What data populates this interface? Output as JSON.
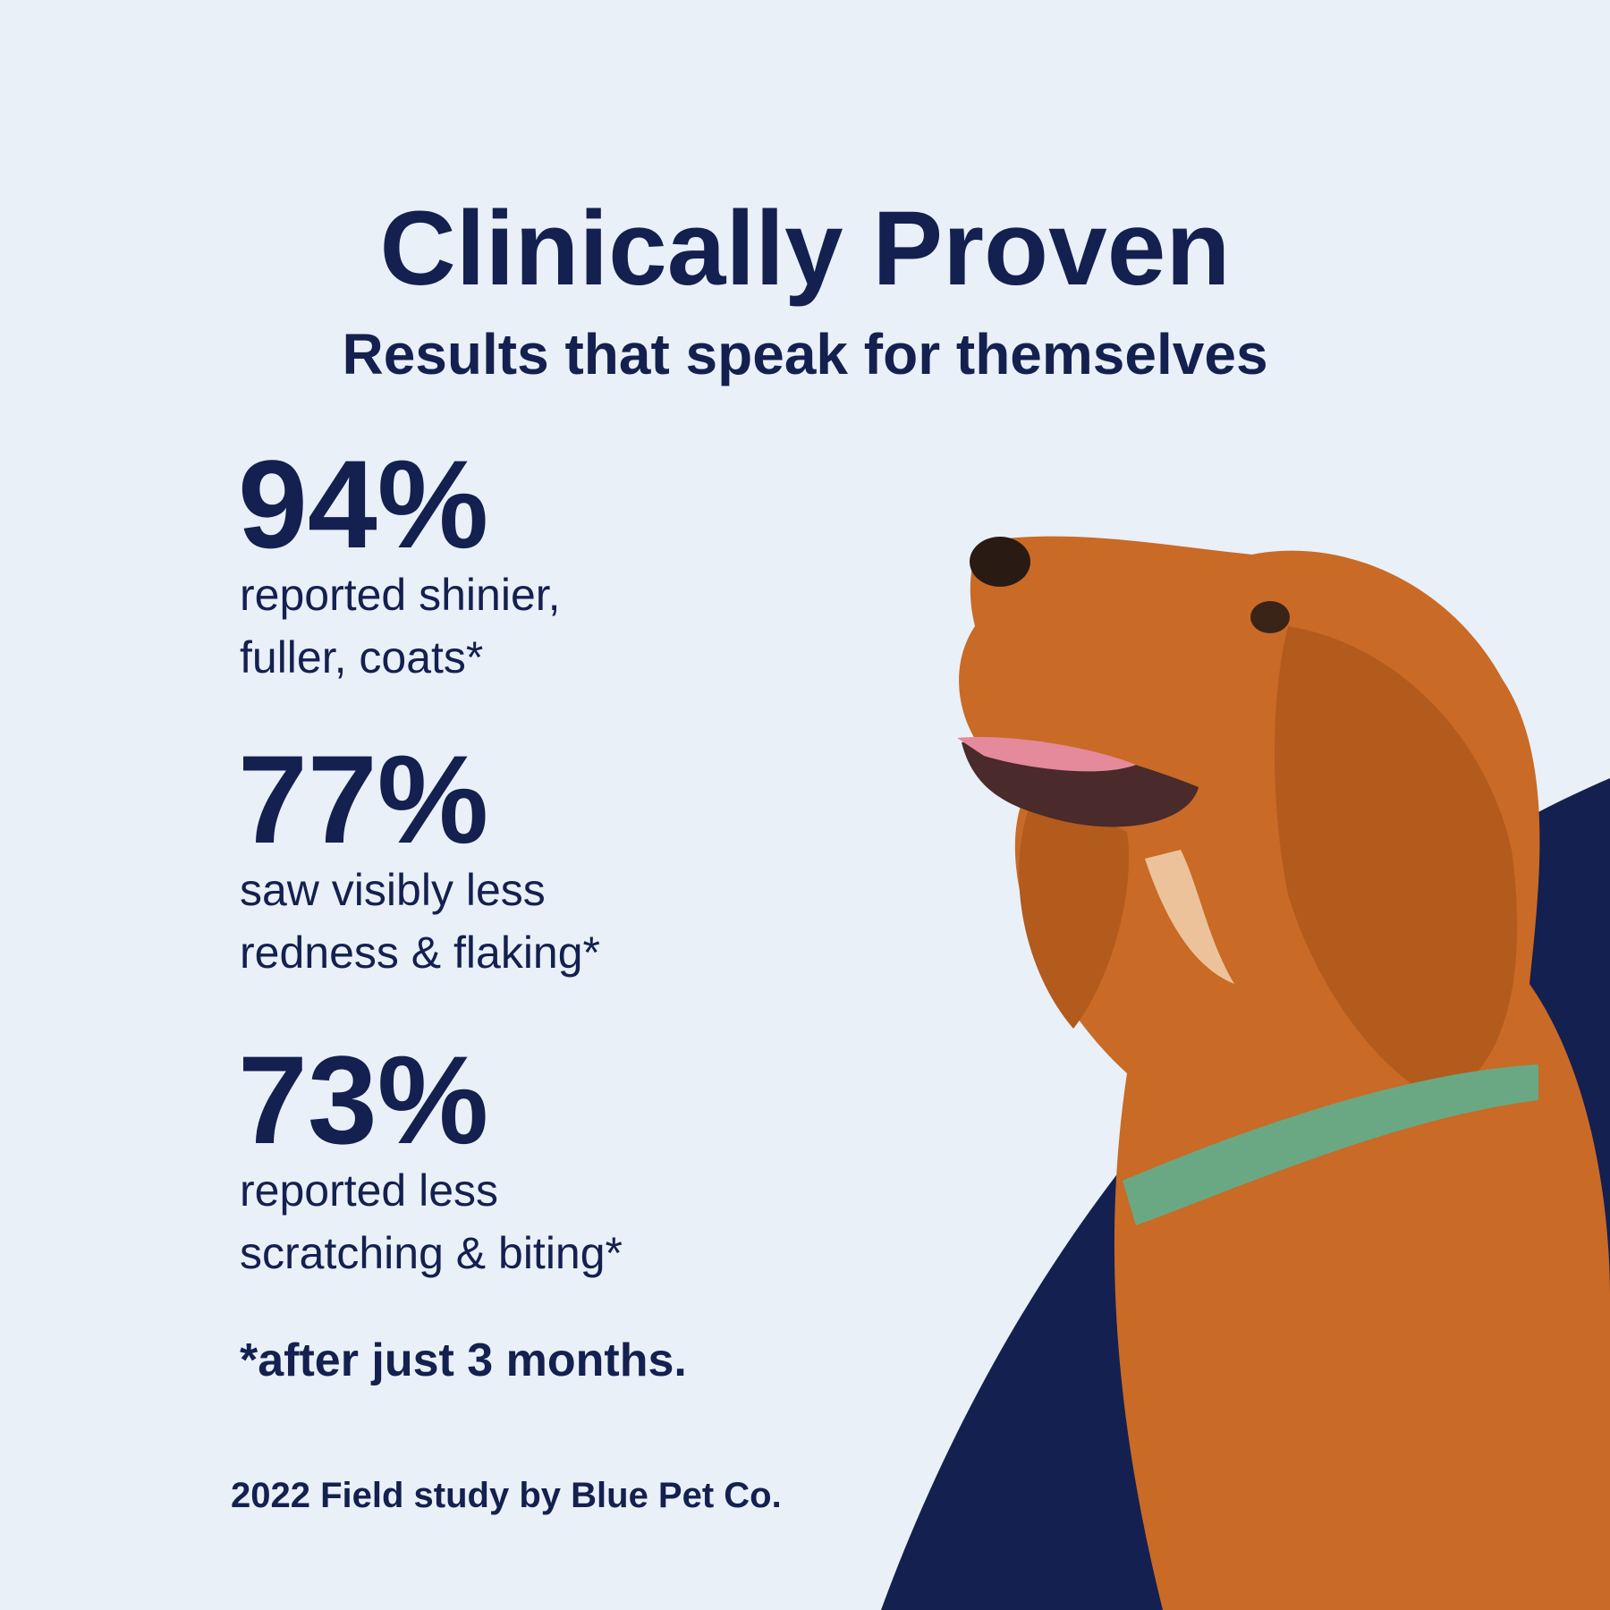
{
  "header": {
    "title": "Clinically Proven",
    "subtitle": "Results that speak for themselves"
  },
  "stats": [
    {
      "value": "94%",
      "lines": [
        "reported shinier,",
        "fuller, coats*"
      ]
    },
    {
      "value": "77%",
      "lines": [
        "saw visibly less",
        "redness & flaking*"
      ]
    },
    {
      "value": "73%",
      "lines": [
        "reported less",
        "scratching & biting*"
      ]
    }
  ],
  "footnote": "*after just 3 months.",
  "source": "2022 Field study by Blue Pet Co."
}
